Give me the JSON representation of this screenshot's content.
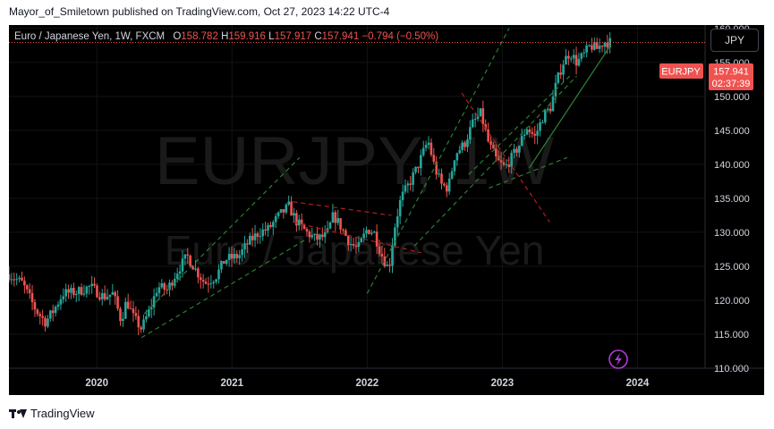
{
  "header": {
    "publisher_text": "Mayor_of_Smiletown published on TradingView.com, Oct 27, 2023 14:22 UTC-4"
  },
  "legend": {
    "symbol": "Euro / Japanese Yen, 1W, FXCM",
    "o_label": "O",
    "o_value": "158.782",
    "h_label": "H",
    "h_value": "159.916",
    "l_label": "L",
    "l_value": "157.917",
    "c_label": "C",
    "c_value": "157.941",
    "change": "−0.794 (−0.50%)"
  },
  "currency_button": "JPY",
  "price_tag": {
    "symbol": "EURJPY",
    "price": "157.941",
    "countdown": "02:37:39"
  },
  "watermark": {
    "ticker": "EURJPY, 1W",
    "name": "Euro / Japanese Yen"
  },
  "footer": {
    "brand": "TradingView"
  },
  "colors": {
    "up": "#26a69a",
    "down": "#ef5350",
    "background": "#000000",
    "trend_green": "#2e7d32",
    "trend_red": "#b71c1c",
    "price_tag": "#ef5350"
  },
  "chart_data": {
    "type": "candlestick",
    "timeframe": "1W",
    "x_tick_labels": [
      "2020",
      "2021",
      "2022",
      "2023",
      "2024"
    ],
    "y_tick_labels": [
      "110.000",
      "115.000",
      "120.000",
      "125.000",
      "130.000",
      "135.000",
      "140.000",
      "145.000",
      "150.000",
      "155.000",
      "160.000"
    ],
    "ylim": [
      110,
      160.5
    ],
    "xlim": [
      2019.35,
      2024.5
    ],
    "last_price": 157.941,
    "price_path": [
      [
        2019.35,
        123.8
      ],
      [
        2019.45,
        122.5
      ],
      [
        2019.55,
        118.5
      ],
      [
        2019.62,
        116.8
      ],
      [
        2019.68,
        118.5
      ],
      [
        2019.75,
        121.0
      ],
      [
        2019.85,
        121.2
      ],
      [
        2019.95,
        122.0
      ],
      [
        2020.05,
        120.5
      ],
      [
        2020.12,
        121.0
      ],
      [
        2020.18,
        117.0
      ],
      [
        2020.22,
        120.0
      ],
      [
        2020.27,
        117.5
      ],
      [
        2020.33,
        115.8
      ],
      [
        2020.4,
        119.0
      ],
      [
        2020.45,
        122.0
      ],
      [
        2020.52,
        121.5
      ],
      [
        2020.6,
        124.5
      ],
      [
        2020.67,
        126.5
      ],
      [
        2020.73,
        124.5
      ],
      [
        2020.8,
        122.5
      ],
      [
        2020.88,
        123.5
      ],
      [
        2020.95,
        126.0
      ],
      [
        2021.05,
        126.5
      ],
      [
        2021.12,
        128.5
      ],
      [
        2021.2,
        130.0
      ],
      [
        2021.27,
        130.5
      ],
      [
        2021.35,
        132.5
      ],
      [
        2021.42,
        133.8
      ],
      [
        2021.48,
        131.5
      ],
      [
        2021.55,
        130.0
      ],
      [
        2021.62,
        129.0
      ],
      [
        2021.7,
        129.5
      ],
      [
        2021.75,
        132.5
      ],
      [
        2021.8,
        131.0
      ],
      [
        2021.87,
        128.5
      ],
      [
        2021.93,
        127.5
      ],
      [
        2022.0,
        130.5
      ],
      [
        2022.05,
        130.0
      ],
      [
        2022.1,
        127.0
      ],
      [
        2022.16,
        124.5
      ],
      [
        2022.2,
        130.5
      ],
      [
        2022.25,
        135.0
      ],
      [
        2022.32,
        137.5
      ],
      [
        2022.38,
        140.0
      ],
      [
        2022.45,
        143.5
      ],
      [
        2022.5,
        139.5
      ],
      [
        2022.55,
        137.0
      ],
      [
        2022.6,
        136.5
      ],
      [
        2022.65,
        141.5
      ],
      [
        2022.72,
        143.0
      ],
      [
        2022.78,
        146.0
      ],
      [
        2022.84,
        147.5
      ],
      [
        2022.9,
        143.0
      ],
      [
        2022.96,
        140.5
      ],
      [
        2023.02,
        139.5
      ],
      [
        2023.07,
        141.0
      ],
      [
        2023.13,
        143.0
      ],
      [
        2023.18,
        145.5
      ],
      [
        2023.24,
        144.0
      ],
      [
        2023.3,
        147.0
      ],
      [
        2023.36,
        148.5
      ],
      [
        2023.4,
        152.0
      ],
      [
        2023.45,
        155.0
      ],
      [
        2023.5,
        156.5
      ],
      [
        2023.55,
        155.0
      ],
      [
        2023.6,
        156.0
      ],
      [
        2023.65,
        157.5
      ],
      [
        2023.7,
        157.0
      ],
      [
        2023.75,
        158.0
      ],
      [
        2023.8,
        157.941
      ]
    ],
    "trendlines": [
      {
        "color": "green",
        "style": "dashed",
        "points": [
          [
            2020.35,
            118.0
          ],
          [
            2021.5,
            141.0
          ]
        ]
      },
      {
        "color": "green",
        "style": "dashed",
        "points": [
          [
            2020.33,
            114.5
          ],
          [
            2021.55,
            129.0
          ]
        ]
      },
      {
        "color": "red",
        "style": "dashed",
        "points": [
          [
            2021.45,
            134.5
          ],
          [
            2022.18,
            132.5
          ]
        ]
      },
      {
        "color": "red",
        "style": "dashed",
        "points": [
          [
            2021.45,
            131.5
          ],
          [
            2022.4,
            127.0
          ]
        ]
      },
      {
        "color": "green",
        "style": "dashed",
        "points": [
          [
            2022.0,
            121.0
          ],
          [
            2023.05,
            160.0
          ]
        ]
      },
      {
        "color": "green",
        "style": "dashed",
        "points": [
          [
            2022.35,
            128.0
          ],
          [
            2023.55,
            153.0
          ]
        ]
      },
      {
        "color": "red",
        "style": "dashed",
        "points": [
          [
            2022.7,
            150.5
          ],
          [
            2023.35,
            131.5
          ]
        ]
      },
      {
        "color": "green",
        "style": "dashed",
        "points": [
          [
            2022.75,
            138.5
          ],
          [
            2023.5,
            153.0
          ]
        ]
      },
      {
        "color": "green",
        "style": "dashed",
        "points": [
          [
            2022.9,
            136.5
          ],
          [
            2023.48,
            141.0
          ]
        ]
      },
      {
        "color": "green",
        "style": "solid",
        "points": [
          [
            2023.2,
            139.5
          ],
          [
            2023.8,
            157.5
          ]
        ]
      }
    ]
  }
}
